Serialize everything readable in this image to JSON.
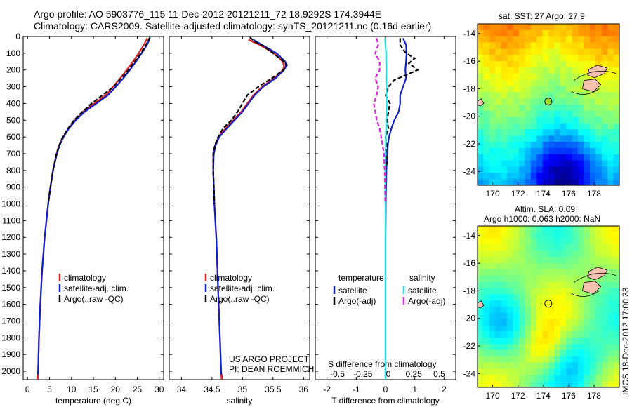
{
  "title": {
    "line1": "Argo profile: AO 5903776_115 11-Dec-2012 20121211_72 18.9292S 174.3944E",
    "line2": "Climatology: CARS2009. Satellite-adjusted climatology: synTS_20121211.nc (0.16d earlier)"
  },
  "sst_title": "sat. SST: 27 Argo: 27.9",
  "sla_title1": "Altim. SLA: 0.09",
  "sla_title2": "Argo h1000: 0.063 h2000: NaN",
  "side_stamp": "IMOS 18-Dec-2012 17:00:33",
  "credit1": "US ARGO PROJECT",
  "credit2": "PI: DEAN ROEMMICH",
  "colors": {
    "clim": "#e0201c",
    "sat": "#1020d0",
    "argo": "#000000",
    "sal_sat": "#20e0e0",
    "sal_argo": "#e020e0"
  },
  "chart_data": [
    {
      "type": "line",
      "name": "temperature",
      "xlabel": "temperature (deg C)",
      "ylabel": "",
      "xlim": [
        -1,
        31
      ],
      "ylim": [
        2050,
        0
      ],
      "xticks": [
        0,
        5,
        10,
        15,
        20,
        25,
        30
      ],
      "yticks": [
        0,
        100,
        200,
        300,
        400,
        500,
        600,
        700,
        800,
        900,
        1000,
        1100,
        1200,
        1300,
        1400,
        1500,
        1600,
        1700,
        1800,
        1900,
        2000
      ],
      "legend": [
        "climatology",
        "satellite-adj. clim.",
        "Argo(..raw -QC)"
      ],
      "series": [
        {
          "name": "climatology",
          "color": "clim",
          "depth": [
            10,
            50,
            100,
            150,
            200,
            250,
            300,
            350,
            400,
            450,
            500,
            550,
            600,
            650,
            700,
            800,
            900,
            1000,
            1200,
            1400,
            1600,
            1800,
            2000,
            2050
          ],
          "values": [
            27.3,
            26.5,
            25.3,
            24.0,
            22.6,
            21.1,
            19.5,
            17.8,
            15.2,
            12.6,
            10.8,
            9.3,
            8.1,
            7.2,
            6.6,
            5.8,
            5.2,
            4.7,
            3.9,
            3.3,
            2.9,
            2.6,
            2.4,
            2.3
          ]
        },
        {
          "name": "satellite-adj. clim.",
          "color": "sat",
          "depth": [
            10,
            50,
            100,
            150,
            200,
            250,
            300,
            350,
            400,
            450,
            500,
            550,
            600,
            650,
            700,
            800,
            900,
            1000,
            1200,
            1400,
            1600,
            1800,
            2000,
            2050
          ],
          "values": [
            27.9,
            27.2,
            26.0,
            24.7,
            23.3,
            21.8,
            20.1,
            18.3,
            15.7,
            13.0,
            11.0,
            9.4,
            8.2,
            7.3,
            6.7,
            5.8,
            5.2,
            4.7,
            3.9,
            3.3,
            2.9,
            2.6,
            2.4,
            2.3
          ]
        },
        {
          "name": "Argo(..raw -QC)",
          "color": "argo",
          "dashed": true,
          "depth": [
            5,
            50,
            100,
            150,
            200,
            250,
            300,
            350,
            400,
            450,
            500,
            550,
            600,
            650,
            700,
            800,
            900,
            1000
          ],
          "values": [
            27.9,
            27.0,
            25.8,
            24.4,
            23.0,
            21.3,
            19.6,
            17.1,
            14.6,
            12.5,
            10.6,
            9.2,
            8.0,
            7.2,
            6.6,
            5.8,
            5.2,
            4.7
          ]
        }
      ]
    },
    {
      "type": "line",
      "name": "salinity",
      "xlabel": "salinity",
      "ylabel": "",
      "xlim": [
        33.8,
        36.1
      ],
      "ylim": [
        2050,
        0
      ],
      "xticks": [
        34,
        34.5,
        35,
        35.5,
        36
      ],
      "legend": [
        "climatology",
        "satellite-adj. clim.",
        "Argo(..raw -QC)"
      ],
      "series": [
        {
          "name": "climatology",
          "color": "clim",
          "depth": [
            20,
            50,
            100,
            150,
            180,
            200,
            250,
            300,
            350,
            400,
            450,
            500,
            550,
            600,
            650,
            700,
            800,
            900,
            1000,
            1200,
            1400,
            1600,
            1800,
            2000,
            2050
          ],
          "values": [
            35.1,
            35.28,
            35.52,
            35.66,
            35.68,
            35.66,
            35.52,
            35.32,
            35.18,
            35.08,
            34.98,
            34.85,
            34.72,
            34.61,
            34.55,
            34.52,
            34.52,
            34.53,
            34.54,
            34.57,
            34.59,
            34.61,
            34.63,
            34.65,
            34.66
          ]
        },
        {
          "name": "satellite-adj. clim.",
          "color": "sat",
          "depth": [
            20,
            50,
            100,
            150,
            180,
            200,
            250,
            300,
            350,
            400,
            450,
            500,
            550,
            600,
            650,
            700,
            800,
            900,
            1000,
            1200,
            1400,
            1600,
            1800,
            2000,
            2050
          ],
          "values": [
            35.18,
            35.32,
            35.56,
            35.7,
            35.71,
            35.68,
            35.54,
            35.34,
            35.2,
            35.1,
            35.0,
            34.87,
            34.74,
            34.62,
            34.56,
            34.53,
            34.52,
            34.53,
            34.54,
            34.57,
            34.59,
            34.61,
            34.63,
            34.65,
            34.66
          ]
        },
        {
          "name": "Argo(..raw -QC)",
          "color": "argo",
          "dashed": true,
          "depth": [
            5,
            30,
            60,
            100,
            150,
            170,
            200,
            250,
            300,
            350,
            400,
            450,
            500,
            550,
            600,
            650,
            700,
            800,
            900,
            1000
          ],
          "values": [
            35.12,
            35.2,
            35.36,
            35.5,
            35.68,
            35.73,
            35.67,
            35.48,
            35.26,
            35.08,
            35.0,
            34.92,
            34.82,
            34.68,
            34.6,
            34.55,
            34.52,
            34.52,
            34.53,
            34.54
          ]
        }
      ]
    },
    {
      "type": "line",
      "name": "difference",
      "xlabel": "T difference from climatology",
      "xlabel_top": "S difference from climatology",
      "xlim": [
        -2.4,
        2.4
      ],
      "ylim": [
        2050,
        0
      ],
      "xticks": [
        -2,
        -1,
        0,
        1,
        2
      ],
      "xticks_s": [
        -0.5,
        -0.25,
        0,
        0.25,
        0.5
      ],
      "legend_titles": [
        "temperature",
        "salinity"
      ],
      "legend": [
        "satellite",
        "Argo(-adj)",
        "satellite",
        "Argo(-adj)"
      ],
      "series": [
        {
          "name": "T satellite",
          "color": "sat",
          "depth": [
            10,
            50,
            100,
            150,
            200,
            250,
            300,
            350,
            400,
            450,
            500,
            550,
            600,
            650,
            700,
            750,
            800,
            900,
            1000,
            1200,
            1400,
            1600,
            1800,
            2000,
            2050
          ],
          "values": [
            0.6,
            0.7,
            0.72,
            0.7,
            0.68,
            0.7,
            0.6,
            0.5,
            0.5,
            0.45,
            0.3,
            0.2,
            0.12,
            0.08,
            0.06,
            0.04,
            0.03,
            0.02,
            0.01,
            0.0,
            0.0,
            0.0,
            0.0,
            0.0,
            0.0
          ]
        },
        {
          "name": "T Argo(-adj)",
          "color": "argo",
          "dashed": true,
          "depth": [
            10,
            50,
            100,
            130,
            160,
            200,
            230,
            260,
            300,
            350,
            400,
            450,
            500,
            550,
            600,
            650,
            700,
            750,
            800,
            900,
            1000
          ],
          "values": [
            0.5,
            0.5,
            0.7,
            1.0,
            0.8,
            1.1,
            0.7,
            0.3,
            0.1,
            0.0,
            0.15,
            0.1,
            0.05,
            0.1,
            0.0,
            0.05,
            0.0,
            0.05,
            0.0,
            0.0,
            0.0
          ]
        },
        {
          "name": "S satellite",
          "color": "sal_sat",
          "depth": [
            10,
            50,
            100,
            150,
            200,
            250,
            300,
            350,
            400,
            450,
            500,
            550,
            600,
            650,
            700,
            800,
            900,
            1000,
            1200,
            1400,
            1600,
            1800,
            2000,
            2050
          ],
          "values": [
            -0.02,
            0.0,
            0.02,
            0.02,
            0.03,
            0.02,
            0.03,
            0.03,
            0.04,
            0.03,
            0.02,
            0.02,
            0.01,
            0.01,
            0.0,
            0.0,
            0.0,
            0.0,
            0.0,
            0.0,
            0.0,
            0.0,
            0.0,
            0.0
          ]
        },
        {
          "name": "S Argo(-adj)",
          "color": "sal_argo",
          "dashed": true,
          "depth": [
            10,
            50,
            100,
            150,
            200,
            250,
            300,
            350,
            400,
            450,
            500,
            550,
            600,
            650,
            700,
            800,
            900,
            1000
          ],
          "values": [
            -0.3,
            -0.25,
            -0.35,
            -0.2,
            -0.2,
            -0.35,
            -0.25,
            -0.3,
            -0.4,
            -0.35,
            -0.3,
            -0.2,
            -0.15,
            -0.1,
            -0.05,
            -0.03,
            -0.02,
            -0.01
          ]
        }
      ]
    },
    {
      "type": "heatmap",
      "name": "sat-sst-map",
      "xticks": [
        170,
        172,
        174,
        176,
        178
      ],
      "yticks": [
        -14,
        -16,
        -18,
        -20,
        -22,
        -24
      ],
      "xlim": [
        168.8,
        180
      ],
      "ylim": [
        -25,
        -13.3
      ],
      "float_position": [
        174.39,
        -18.93
      ]
    },
    {
      "type": "heatmap",
      "name": "sla-map",
      "xticks": [
        170,
        172,
        174,
        176,
        178
      ],
      "yticks": [
        -14,
        -16,
        -18,
        -20,
        -22,
        -24
      ],
      "xlim": [
        168.8,
        180
      ],
      "ylim": [
        -25,
        -13.3
      ],
      "float_position": [
        174.39,
        -18.93
      ]
    }
  ]
}
